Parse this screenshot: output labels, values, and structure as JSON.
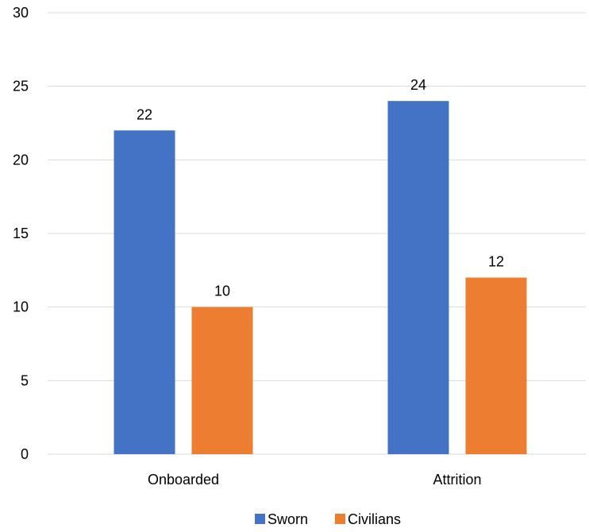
{
  "chart_data": {
    "type": "bar",
    "title": "",
    "xlabel": "",
    "ylabel": "",
    "categories": [
      "Onboarded",
      "Attrition"
    ],
    "series": [
      {
        "name": "Sworn",
        "values": [
          22,
          24
        ],
        "color": "#4472C4"
      },
      {
        "name": "Civilians",
        "values": [
          10,
          12
        ],
        "color": "#ED7D31"
      }
    ],
    "ylim": [
      0,
      30
    ],
    "yticks": [
      0,
      5,
      10,
      15,
      20,
      25,
      30
    ],
    "grid": true,
    "gridline_color": "#D9D9D9",
    "data_labels": true,
    "legend_position": "bottom"
  }
}
